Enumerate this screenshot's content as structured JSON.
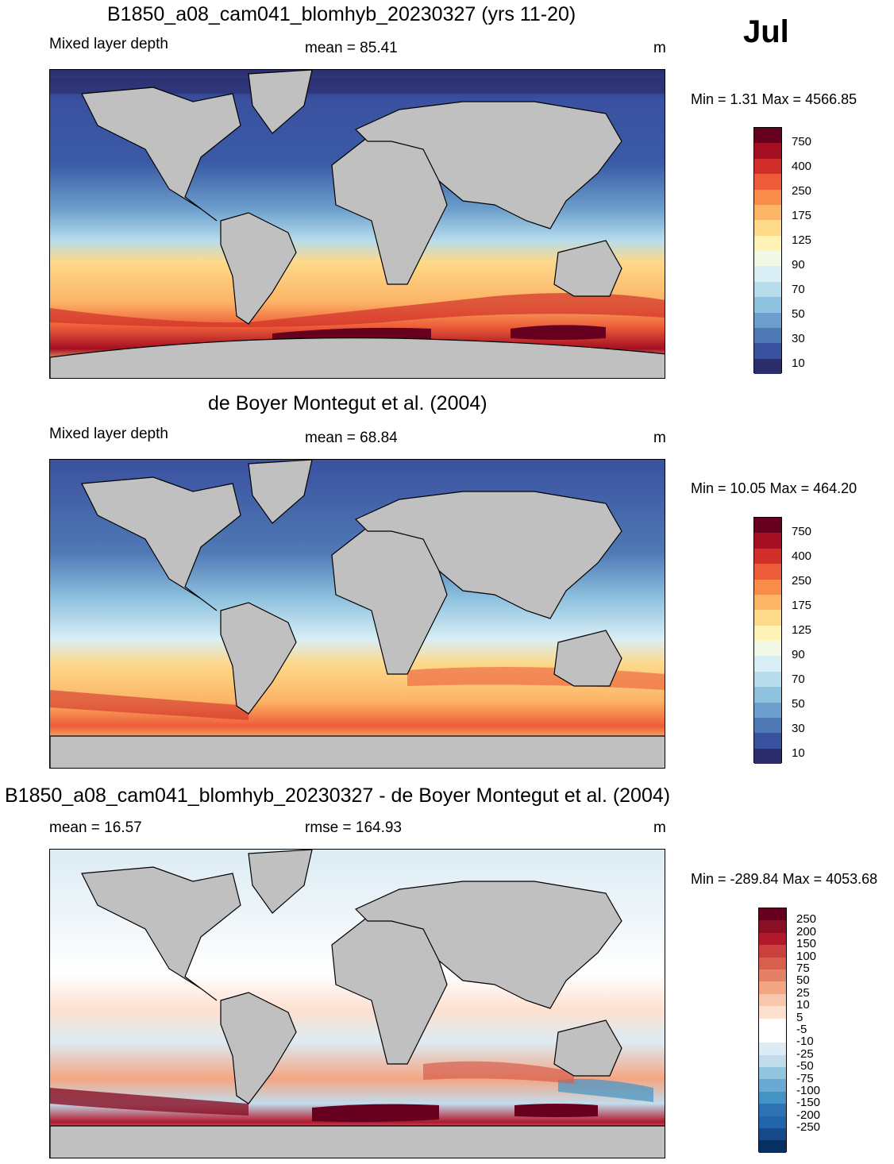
{
  "month": "Jul",
  "units": "m",
  "panels": [
    {
      "title": "B1850_a08_cam041_blomhyb_20230327 (yrs 11-20)",
      "variable": "Mixed layer depth",
      "stat": "mean =  85.41",
      "units": "m",
      "minmax": "Min =   1.31 Max = 4566.85"
    },
    {
      "title": "de Boyer Montegut et al. (2004)",
      "variable": "Mixed layer depth",
      "stat": "mean =  68.84",
      "units": "m",
      "minmax": "Min =  10.05 Max = 464.20"
    },
    {
      "title": "B1850_a08_cam041_blomhyb_20230327 - de Boyer Montegut et al. (2004)",
      "stat_left": "mean =  16.57",
      "stat": "rmse = 164.93",
      "units": "m",
      "minmax": "Min = -289.84 Max = 4053.68"
    }
  ],
  "colorbar_main": {
    "labels": [
      "750",
      "400",
      "250",
      "175",
      "125",
      "90",
      "70",
      "50",
      "30",
      "10"
    ],
    "colors": [
      "#67001f",
      "#a50f23",
      "#d1302a",
      "#ec5c38",
      "#f98c4a",
      "#fcb466",
      "#fdd98a",
      "#fef3b4",
      "#f2f8e6",
      "#d9eef5",
      "#b7dcec",
      "#8fc2df",
      "#6c9fcc",
      "#4f79b5",
      "#3a51a0",
      "#2b2d6c"
    ]
  },
  "colorbar_diff": {
    "labels": [
      "250",
      "200",
      "150",
      "100",
      "75",
      "50",
      "25",
      "10",
      "5",
      "-5",
      "-10",
      "-25",
      "-50",
      "-75",
      "-100",
      "-150",
      "-200",
      "-250"
    ],
    "colors": [
      "#67001f",
      "#8a0f24",
      "#b2182b",
      "#c9403f",
      "#d6604d",
      "#e48066",
      "#f4a582",
      "#f8c6ac",
      "#fde0d0",
      "#ffffff",
      "#ffffff",
      "#dcebf4",
      "#c1dcec",
      "#92c5de",
      "#6aaad2",
      "#4393c3",
      "#2f72b3",
      "#2166ac",
      "#174a8a",
      "#053061"
    ]
  }
}
